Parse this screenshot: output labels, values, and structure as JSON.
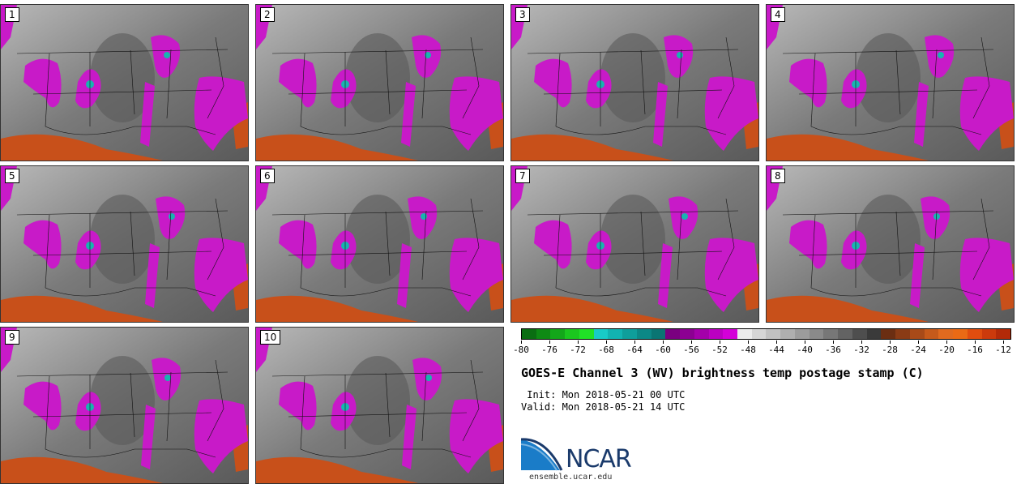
{
  "panels": [
    "1",
    "2",
    "3",
    "4",
    "5",
    "6",
    "7",
    "8",
    "9",
    "10"
  ],
  "colorbar": {
    "colors": [
      "#0a6e12",
      "#0e8a14",
      "#13a71a",
      "#1bc61f",
      "#20e226",
      "#18cbc7",
      "#12b3b1",
      "#0f9e9b",
      "#0c8886",
      "#0a7573",
      "#7a0080",
      "#8c0092",
      "#a400aa",
      "#bc00c2",
      "#d400d8",
      "#ececec",
      "#d6d6d6",
      "#c2c2c2",
      "#afafaf",
      "#9c9c9c",
      "#8a8a8a",
      "#777777",
      "#636363",
      "#4e4e4e",
      "#3a3a3a",
      "#6b2e12",
      "#8a3b15",
      "#a84a18",
      "#c65a1b",
      "#e06a1f",
      "#ea6a15",
      "#e04d0f",
      "#cc3a0c",
      "#b32a08"
    ],
    "ticks": [
      "-80",
      "-76",
      "-72",
      "-68",
      "-64",
      "-60",
      "-56",
      "-52",
      "-48",
      "-44",
      "-40",
      "-36",
      "-32",
      "-28",
      "-24",
      "-20",
      "-16",
      "-12"
    ]
  },
  "title": "GOES-E Channel 3 (WV) brightness temp postage stamp (C)",
  "init": " Init: Mon 2018-05-21 00 UTC",
  "valid": "Valid: Mon 2018-05-21 14 UTC",
  "logo_text": "NCAR",
  "site": "ensemble.ucar.edu",
  "colors": {
    "moist": "#c81ac8",
    "cyan": "#18b4b0",
    "warm": "#c8501a",
    "bg": "#8a8a8a"
  }
}
